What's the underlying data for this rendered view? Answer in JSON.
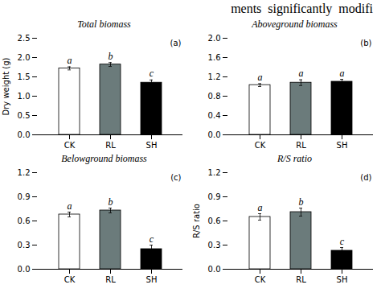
{
  "title": "ments  significantly  modifi",
  "chart_data": [
    {
      "type": "bar",
      "title": "Total biomass",
      "panel_label": "(a)",
      "ylabel": "Dry weight (g)",
      "categories": [
        "CK",
        "RL",
        "SH"
      ],
      "values": [
        1.72,
        1.82,
        1.35
      ],
      "errors": [
        0.04,
        0.05,
        0.07
      ],
      "sig_labels": [
        "a",
        "b",
        "c"
      ],
      "colors": [
        "#ffffff",
        "#6b7b7b",
        "#000000"
      ],
      "ylim": [
        0,
        2.5
      ],
      "yticks": [
        {
          "value": 0,
          "label": "0.0"
        },
        0.5,
        {
          "value": 1,
          "label": "1.0"
        },
        1.5,
        {
          "value": 2,
          "label": "2.0"
        },
        2.5
      ]
    },
    {
      "type": "bar",
      "title": "Aboveground biomass",
      "panel_label": "(b)",
      "categories": [
        "CK",
        "RL",
        "SH"
      ],
      "values": [
        1.03,
        1.08,
        1.1
      ],
      "errors": [
        0.03,
        0.06,
        0.05
      ],
      "sig_labels": [
        "a",
        "a",
        "a"
      ],
      "colors": [
        "#ffffff",
        "#6b7b7b",
        "#000000"
      ],
      "ylim": [
        0,
        2.0
      ],
      "yticks": [
        {
          "value": 0,
          "label": "0.0"
        },
        0.4,
        0.8,
        1.2,
        1.6,
        {
          "value": 2,
          "label": "2.0"
        }
      ]
    },
    {
      "type": "bar",
      "title": "Belowground biomass",
      "panel_label": "(c)",
      "categories": [
        "CK",
        "RL",
        "SH"
      ],
      "values": [
        0.68,
        0.73,
        0.25
      ],
      "errors": [
        0.03,
        0.03,
        0.05
      ],
      "sig_labels": [
        "a",
        "b",
        "c"
      ],
      "colors": [
        "#ffffff",
        "#6b7b7b",
        "#000000"
      ],
      "ylim": [
        0,
        1.2
      ],
      "yticks": [
        {
          "value": 0,
          "label": "0.0"
        },
        0.3,
        0.6,
        0.9,
        1.2
      ]
    },
    {
      "type": "bar",
      "title": "R/S ratio",
      "panel_label": "(d)",
      "ylabel": "R/S ratio",
      "categories": [
        "CK",
        "RL",
        "SH"
      ],
      "values": [
        0.65,
        0.71,
        0.23
      ],
      "errors": [
        0.04,
        0.05,
        0.04
      ],
      "sig_labels": [
        "a",
        "b",
        "c"
      ],
      "colors": [
        "#ffffff",
        "#6b7b7b",
        "#000000"
      ],
      "ylim": [
        0,
        1.2
      ],
      "yticks": [
        {
          "value": 0,
          "label": "0.0"
        },
        0.3,
        0.6,
        0.9,
        1.2
      ]
    }
  ]
}
